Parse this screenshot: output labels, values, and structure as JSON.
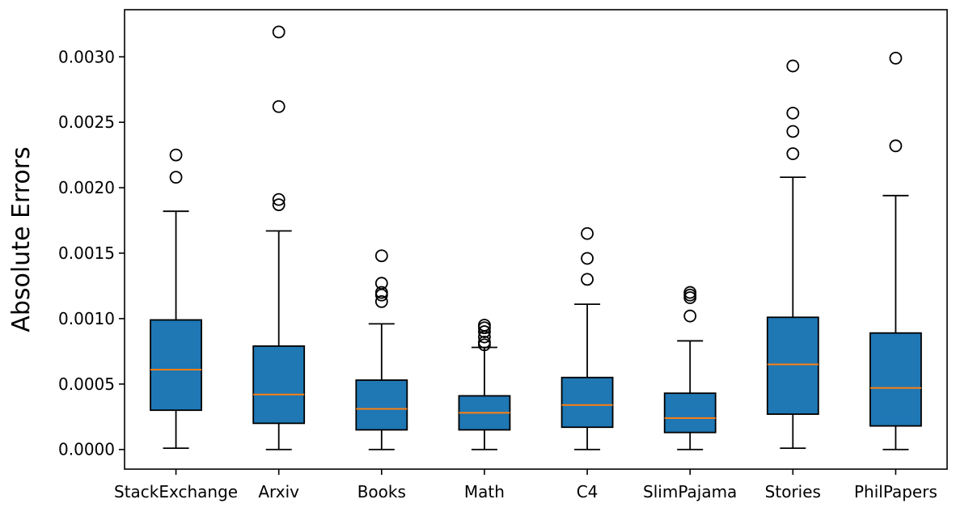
{
  "chart_data": {
    "type": "box",
    "title": "",
    "xlabel": "",
    "ylabel": "Absolute Errors",
    "ylim": [
      -0.00015,
      0.00336
    ],
    "yticks": [
      "0.0000",
      "0.0005",
      "0.0010",
      "0.0015",
      "0.0020",
      "0.0025",
      "0.0030"
    ],
    "categories": [
      "StackExchange",
      "Arxiv",
      "Books",
      "Math",
      "C4",
      "SlimPajama",
      "Stories",
      "PhilPapers"
    ],
    "boxes": [
      {
        "name": "StackExchange",
        "whisker_low": 1e-05,
        "q1": 0.0003,
        "median": 0.00061,
        "q3": 0.00099,
        "whisker_high": 0.00182,
        "outliers": [
          0.00208,
          0.00225
        ]
      },
      {
        "name": "Arxiv",
        "whisker_low": 0.0,
        "q1": 0.0002,
        "median": 0.00042,
        "q3": 0.00079,
        "whisker_high": 0.00167,
        "outliers": [
          0.00187,
          0.00191,
          0.00262,
          0.00319
        ]
      },
      {
        "name": "Books",
        "whisker_low": 0.0,
        "q1": 0.00015,
        "median": 0.00031,
        "q3": 0.00053,
        "whisker_high": 0.00096,
        "outliers": [
          0.00113,
          0.00118,
          0.0012,
          0.00127,
          0.00148
        ]
      },
      {
        "name": "Math",
        "whisker_low": 0.0,
        "q1": 0.00015,
        "median": 0.00028,
        "q3": 0.00041,
        "whisker_high": 0.00078,
        "outliers": [
          0.0008,
          0.00082,
          0.00086,
          0.0009,
          0.00093,
          0.00095
        ]
      },
      {
        "name": "C4",
        "whisker_low": 0.0,
        "q1": 0.00017,
        "median": 0.00034,
        "q3": 0.00055,
        "whisker_high": 0.00111,
        "outliers": [
          0.0013,
          0.00146,
          0.00165
        ]
      },
      {
        "name": "SlimPajama",
        "whisker_low": 0.0,
        "q1": 0.00013,
        "median": 0.00024,
        "q3": 0.00043,
        "whisker_high": 0.00083,
        "outliers": [
          0.00102,
          0.00116,
          0.00118,
          0.0012
        ]
      },
      {
        "name": "Stories",
        "whisker_low": 1e-05,
        "q1": 0.00027,
        "median": 0.00065,
        "q3": 0.00101,
        "whisker_high": 0.00208,
        "outliers": [
          0.00226,
          0.00243,
          0.00257,
          0.00293
        ]
      },
      {
        "name": "PhilPapers",
        "whisker_low": 0.0,
        "q1": 0.00018,
        "median": 0.00047,
        "q3": 0.00089,
        "whisker_high": 0.00194,
        "outliers": [
          0.00232,
          0.00299
        ]
      }
    ],
    "colors": {
      "box_fill": "#1f77b4",
      "median": "#ff7f0e",
      "line": "#000000"
    },
    "grid": false,
    "legend": "none"
  }
}
